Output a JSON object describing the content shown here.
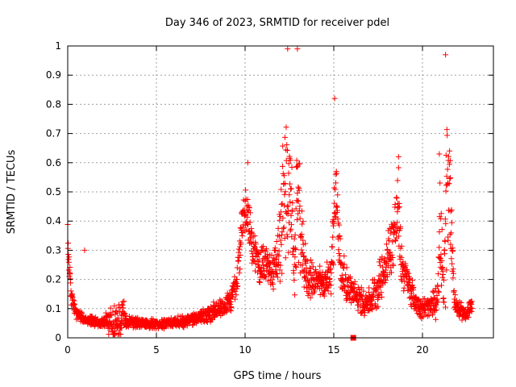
{
  "chart_data": {
    "type": "scatter",
    "title": "Day 346 of 2023, SRMTID for receiver pdel",
    "xlabel": "GPS time / hours",
    "ylabel": "SRMTID / TECUs",
    "xlim": [
      0,
      24
    ],
    "ylim": [
      0,
      1
    ],
    "xticks": [
      0,
      5,
      10,
      15,
      20
    ],
    "yticks": [
      0,
      0.1,
      0.2,
      0.3,
      0.4,
      0.5,
      0.6,
      0.7,
      0.8,
      0.9,
      1
    ],
    "xtick_labels": [
      "0",
      "5",
      "10",
      "15",
      "20"
    ],
    "ytick_labels": [
      "0",
      "0.1",
      "0.2",
      "0.3",
      "0.4",
      "0.5",
      "0.6",
      "0.7",
      "0.8",
      "0.9",
      "1"
    ],
    "grid": true,
    "marker": "+",
    "color": "#ff0000",
    "square_marker": {
      "x": 16.1,
      "y": 0.0
    },
    "series": [
      {
        "name": "SRMTID",
        "envelope_x": [
          0,
          0.05,
          0.2,
          0.5,
          1.0,
          2.0,
          2.9,
          3.1,
          3.3,
          4.0,
          5.0,
          6.0,
          7.0,
          8.0,
          8.6,
          9.2,
          9.5,
          9.8,
          10.1,
          10.4,
          10.8,
          11.2,
          11.6,
          11.9,
          12.1,
          12.35,
          12.6,
          12.8,
          12.95,
          13.15,
          13.5,
          14.0,
          14.5,
          14.85,
          15.0,
          15.15,
          15.4,
          15.8,
          16.2,
          16.6,
          17.0,
          17.4,
          17.8,
          18.2,
          18.5,
          18.65,
          18.8,
          19.2,
          19.6,
          20.0,
          20.4,
          20.8,
          21.0,
          21.2,
          21.35,
          21.5,
          21.65,
          21.8,
          22.1,
          22.5,
          22.8
        ],
        "envelope_base": [
          0.35,
          0.28,
          0.14,
          0.08,
          0.06,
          0.05,
          0.05,
          0.08,
          0.05,
          0.05,
          0.045,
          0.05,
          0.06,
          0.08,
          0.1,
          0.12,
          0.2,
          0.35,
          0.45,
          0.3,
          0.25,
          0.24,
          0.22,
          0.28,
          0.38,
          0.52,
          0.45,
          0.2,
          0.55,
          0.3,
          0.2,
          0.19,
          0.18,
          0.22,
          0.38,
          0.5,
          0.22,
          0.17,
          0.14,
          0.12,
          0.12,
          0.16,
          0.22,
          0.3,
          0.38,
          0.43,
          0.25,
          0.18,
          0.12,
          0.1,
          0.1,
          0.12,
          0.35,
          0.12,
          0.45,
          0.55,
          0.35,
          0.12,
          0.09,
          0.08,
          0.11
        ],
        "spread": [
          0.08,
          0.1,
          0.04,
          0.03,
          0.025,
          0.025,
          0.14,
          0.1,
          0.03,
          0.025,
          0.025,
          0.03,
          0.03,
          0.04,
          0.05,
          0.05,
          0.1,
          0.15,
          0.12,
          0.1,
          0.1,
          0.1,
          0.1,
          0.15,
          0.38,
          0.4,
          0.25,
          0.12,
          0.4,
          0.2,
          0.1,
          0.08,
          0.08,
          0.1,
          0.25,
          0.2,
          0.12,
          0.08,
          0.07,
          0.07,
          0.07,
          0.1,
          0.12,
          0.15,
          0.22,
          0.2,
          0.12,
          0.08,
          0.06,
          0.05,
          0.06,
          0.08,
          0.28,
          0.08,
          0.5,
          0.35,
          0.2,
          0.05,
          0.04,
          0.04,
          0.05
        ],
        "notable_points": [
          {
            "x": 0.95,
            "y": 0.3
          },
          {
            "x": 12.95,
            "y": 0.99
          },
          {
            "x": 12.4,
            "y": 0.99
          },
          {
            "x": 21.3,
            "y": 0.97
          },
          {
            "x": 15.05,
            "y": 0.82
          },
          {
            "x": 18.65,
            "y": 0.62
          },
          {
            "x": 20.95,
            "y": 0.63
          },
          {
            "x": 10.15,
            "y": 0.6
          }
        ]
      }
    ]
  }
}
